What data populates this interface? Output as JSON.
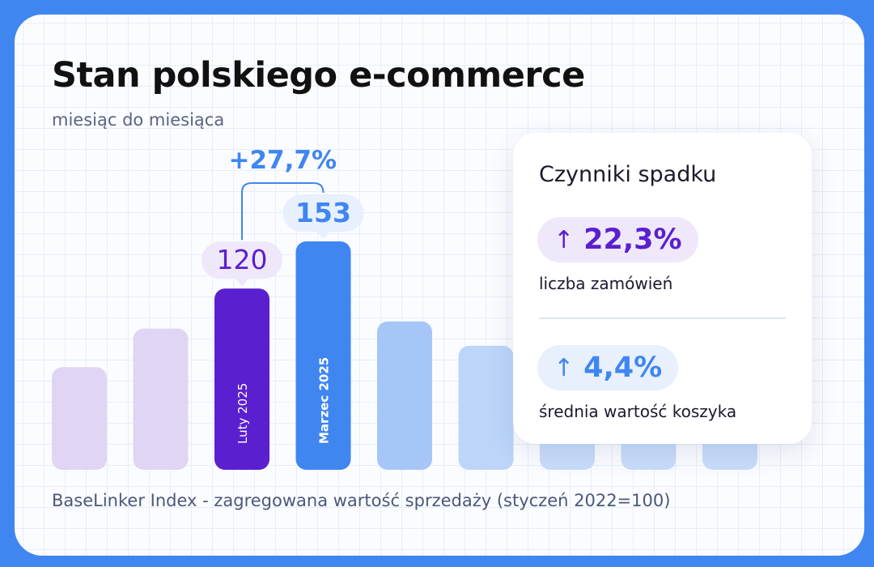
{
  "header": {
    "title": "Stan polskiego e-commerce",
    "subtitle": "miesiąc do miesiąca"
  },
  "footer": {
    "note": "BaseLinker Index - zagregowana wartość sprzedaży (styczeń 2022=100)"
  },
  "chart_data": {
    "type": "bar",
    "title": "Stan polskiego e-commerce",
    "subtitle": "miesiąc do miesiąca",
    "categories": [
      "",
      "",
      "Luty 2025",
      "Marzec 2025",
      "",
      "",
      "",
      "",
      ""
    ],
    "values": [
      65,
      92,
      120,
      153,
      97,
      80,
      40,
      40,
      40
    ],
    "highlight": [
      {
        "index": 2,
        "label": "Luty 2025",
        "value_label": "120",
        "color": "#5a1fce"
      },
      {
        "index": 3,
        "label": "Marzec 2025",
        "value_label": "153",
        "color": "#3f86f0"
      }
    ],
    "change_label": "+27,7%",
    "bar_colors": [
      "#e1d5f5",
      "#e1d5f5",
      "#5a1fce",
      "#3f86f0",
      "#a6c6f7",
      "#bcd5f9",
      "#c8dcfa",
      "#c8dcfa",
      "#c8dcfa"
    ],
    "ylim": [
      0,
      160
    ],
    "xlabel": "",
    "ylabel": "",
    "grid": false
  },
  "panel": {
    "title": "Czynniki spadku",
    "factors": [
      {
        "arrow": "↑",
        "value": "22,3%",
        "label": "liczba zamówień"
      },
      {
        "arrow": "↑",
        "value": "4,4%",
        "label": "średnia wartość koszyka"
      }
    ]
  },
  "colors": {
    "background": "#3f86f0",
    "purple": "#5a1fce",
    "blue": "#3f86f0",
    "purple_light": "#efe8fb",
    "blue_light": "#e8f0fd"
  }
}
